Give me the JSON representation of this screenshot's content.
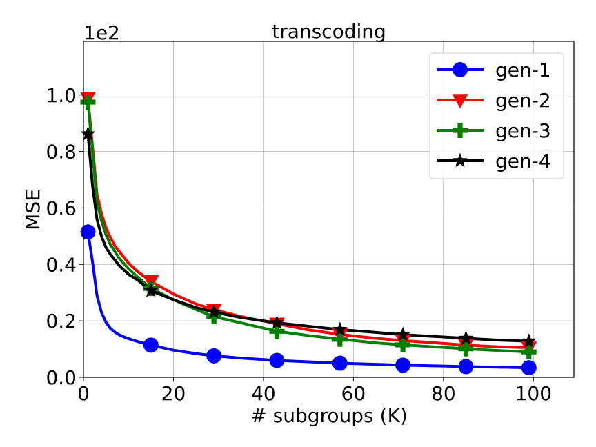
{
  "chart_data": {
    "type": "line",
    "title": "transcoding",
    "xlabel": "# subgroups (K)",
    "ylabel": "MSE",
    "y_scale_label": "1e2",
    "xlim": [
      0,
      109
    ],
    "ylim": [
      0,
      1.19
    ],
    "x_ticks": [
      0,
      20,
      40,
      60,
      80,
      100
    ],
    "x_tick_labels": [
      "0",
      "20",
      "40",
      "60",
      "80",
      "100"
    ],
    "y_ticks": [
      0.0,
      0.2,
      0.4,
      0.6,
      0.8,
      1.0
    ],
    "y_tick_labels": [
      "0.0",
      "0.2",
      "0.4",
      "0.6",
      "0.8",
      "1.0"
    ],
    "grid": true,
    "legend_position": "top-right",
    "series": [
      {
        "name": "gen-1",
        "color": "#0000ff",
        "marker": "circle",
        "x": [
          1,
          2,
          3,
          4,
          5,
          6,
          7,
          8,
          9,
          10,
          12,
          15,
          20,
          25,
          29,
          35,
          43,
          50,
          57,
          65,
          71,
          80,
          85,
          92,
          99
        ],
        "y": [
          0.515,
          0.41,
          0.29,
          0.23,
          0.195,
          0.173,
          0.16,
          0.15,
          0.143,
          0.137,
          0.127,
          0.114,
          0.096,
          0.084,
          0.076,
          0.068,
          0.06,
          0.055,
          0.05,
          0.046,
          0.043,
          0.04,
          0.038,
          0.036,
          0.034
        ],
        "marker_x": [
          1,
          15,
          29,
          43,
          57,
          71,
          85,
          99
        ],
        "marker_y": [
          0.515,
          0.114,
          0.076,
          0.06,
          0.05,
          0.043,
          0.038,
          0.034
        ]
      },
      {
        "name": "gen-2",
        "color": "#ff0000",
        "marker": "triangle-down",
        "x": [
          1,
          2,
          3,
          4,
          5,
          6,
          7,
          8,
          10,
          12,
          15,
          20,
          25,
          29,
          35,
          43,
          50,
          57,
          65,
          71,
          80,
          85,
          92,
          99
        ],
        "y": [
          0.99,
          0.82,
          0.65,
          0.58,
          0.53,
          0.495,
          0.465,
          0.445,
          0.405,
          0.375,
          0.34,
          0.295,
          0.26,
          0.24,
          0.215,
          0.19,
          0.168,
          0.152,
          0.138,
          0.13,
          0.12,
          0.114,
          0.108,
          0.105
        ],
        "marker_x": [
          1,
          15,
          29,
          43,
          57,
          71,
          85,
          99
        ],
        "marker_y": [
          0.99,
          0.34,
          0.24,
          0.19,
          0.152,
          0.13,
          0.114,
          0.105
        ]
      },
      {
        "name": "gen-3",
        "color": "#008000",
        "marker": "plus",
        "x": [
          1,
          2,
          3,
          4,
          5,
          6,
          7,
          8,
          10,
          12,
          15,
          20,
          25,
          29,
          35,
          43,
          50,
          57,
          65,
          71,
          80,
          85,
          92,
          99
        ],
        "y": [
          0.975,
          0.8,
          0.62,
          0.555,
          0.505,
          0.47,
          0.445,
          0.42,
          0.385,
          0.355,
          0.315,
          0.275,
          0.24,
          0.215,
          0.193,
          0.163,
          0.148,
          0.135,
          0.122,
          0.115,
          0.106,
          0.101,
          0.095,
          0.09
        ],
        "marker_x": [
          1,
          15,
          29,
          43,
          57,
          71,
          85,
          99
        ],
        "marker_y": [
          0.975,
          0.315,
          0.215,
          0.163,
          0.135,
          0.115,
          0.101,
          0.09
        ]
      },
      {
        "name": "gen-4",
        "color": "#000000",
        "marker": "star",
        "x": [
          1,
          2,
          3,
          4,
          5,
          6,
          7,
          8,
          10,
          12,
          15,
          20,
          25,
          29,
          35,
          43,
          50,
          57,
          65,
          71,
          80,
          85,
          92,
          99
        ],
        "y": [
          0.862,
          0.68,
          0.56,
          0.5,
          0.46,
          0.435,
          0.415,
          0.395,
          0.365,
          0.345,
          0.307,
          0.275,
          0.247,
          0.231,
          0.212,
          0.193,
          0.181,
          0.169,
          0.159,
          0.151,
          0.143,
          0.138,
          0.132,
          0.128
        ],
        "marker_x": [
          1,
          15,
          29,
          43,
          57,
          71,
          85,
          99
        ],
        "marker_y": [
          0.862,
          0.307,
          0.231,
          0.193,
          0.169,
          0.151,
          0.138,
          0.128
        ]
      }
    ]
  }
}
